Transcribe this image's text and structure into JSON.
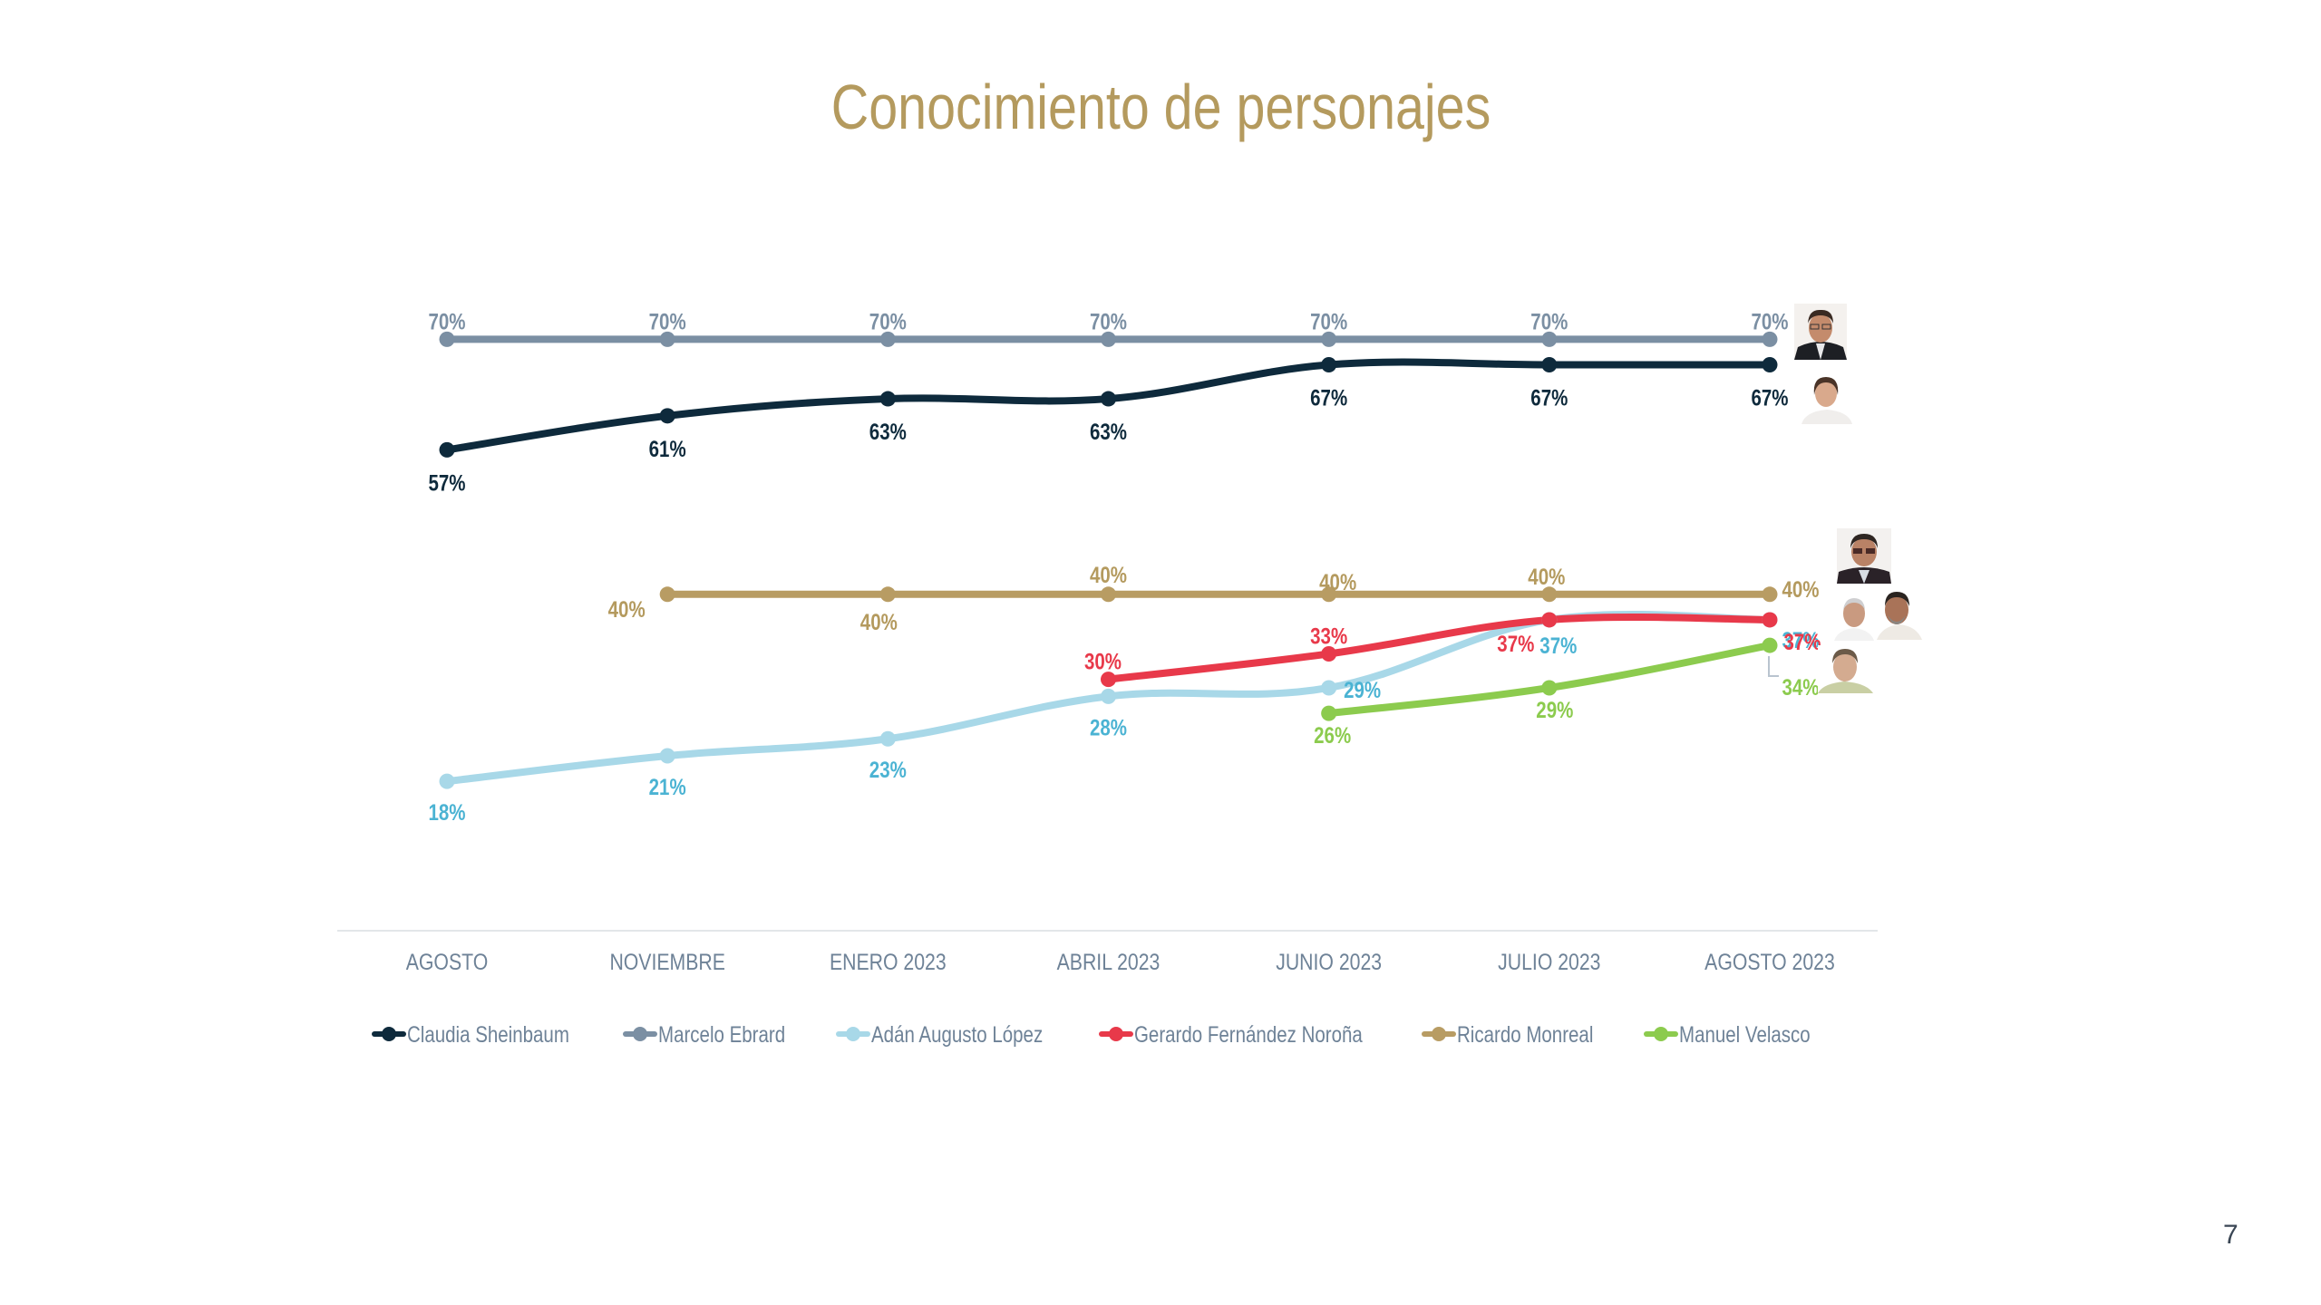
{
  "page": {
    "title": "Conocimiento de personajes",
    "page_number": "7"
  },
  "photos": [
    {
      "name": "Marcelo Ebrard",
      "icon": "portrait-photo-marcelo-ebrard"
    },
    {
      "name": "Claudia Sheinbaum",
      "icon": "portrait-photo-claudia-sheinbaum"
    },
    {
      "name": "Ricardo Monreal",
      "icon": "portrait-photo-ricardo-monreal"
    },
    {
      "name": "Adán Augusto López",
      "icon": "portrait-photo-adan-augusto-lopez"
    },
    {
      "name": "Gerardo Fernández Noroña",
      "icon": "portrait-photo-gerardo-fernandez-norona"
    },
    {
      "name": "Manuel Velasco",
      "icon": "portrait-photo-manuel-velasco"
    }
  ],
  "chart_data": {
    "type": "line",
    "title": "Conocimiento de personajes",
    "xlabel": "",
    "ylabel": "",
    "ylim": [
      0,
      75
    ],
    "grid": false,
    "legend_position": "bottom",
    "categories": [
      "AGOSTO",
      "NOVIEMBRE",
      "ENERO 2023",
      "ABRIL 2023",
      "JUNIO 2023",
      "JULIO 2023",
      "AGOSTO 2023"
    ],
    "series": [
      {
        "name": "Marcelo Ebrard",
        "color": "#7B8FA3",
        "label_color": "#7B8FA3",
        "values": [
          70,
          70,
          70,
          70,
          70,
          70,
          70
        ],
        "labels": [
          "70%",
          "70%",
          "70%",
          "70%",
          "70%",
          "70%",
          "70%"
        ]
      },
      {
        "name": "Claudia Sheinbaum",
        "color": "#0E2A3C",
        "label_color": "#0E2A3C",
        "values": [
          57,
          61,
          63,
          63,
          67,
          67,
          67
        ],
        "labels": [
          "57%",
          "61%",
          "63%",
          "63%",
          "67%",
          "67%",
          "67%"
        ]
      },
      {
        "name": "Ricardo Monreal",
        "color": "#B89C63",
        "label_color": "#B49A5E",
        "values": [
          null,
          40,
          40,
          40,
          40,
          40,
          40
        ],
        "labels": [
          null,
          "40%",
          "40%",
          "40%",
          "40%",
          "40%",
          "40%"
        ]
      },
      {
        "name": "Adán Augusto López",
        "color": "#A8D8E8",
        "label_color": "#4BB3D3",
        "values": [
          18,
          21,
          23,
          28,
          29,
          37,
          37
        ],
        "labels": [
          "18%",
          "21%",
          "23%",
          "28%",
          "29%",
          "37%",
          "37%"
        ]
      },
      {
        "name": "Gerardo Fernández Noroña",
        "color": "#E8394A",
        "label_color": "#E8394A",
        "values": [
          null,
          null,
          null,
          30,
          33,
          37,
          37
        ],
        "labels": [
          null,
          null,
          null,
          "30%",
          "33%",
          "37%",
          "37%"
        ]
      },
      {
        "name": "Manuel Velasco",
        "color": "#8CCB4E",
        "label_color": "#8CCB4E",
        "values": [
          null,
          null,
          null,
          null,
          26,
          29,
          34
        ],
        "labels": [
          null,
          null,
          null,
          null,
          "26%",
          "29%",
          "34%"
        ]
      }
    ],
    "legend": [
      {
        "name": "Claudia Sheinbaum",
        "color": "#0E2A3C"
      },
      {
        "name": "Marcelo Ebrard",
        "color": "#7B8FA3"
      },
      {
        "name": "Adán Augusto López",
        "color": "#A8D8E8"
      },
      {
        "name": "Gerardo Fernández Noroña",
        "color": "#E8394A"
      },
      {
        "name": "Ricardo Monreal",
        "color": "#B89C63"
      },
      {
        "name": "Manuel Velasco",
        "color": "#8CCB4E"
      }
    ]
  }
}
